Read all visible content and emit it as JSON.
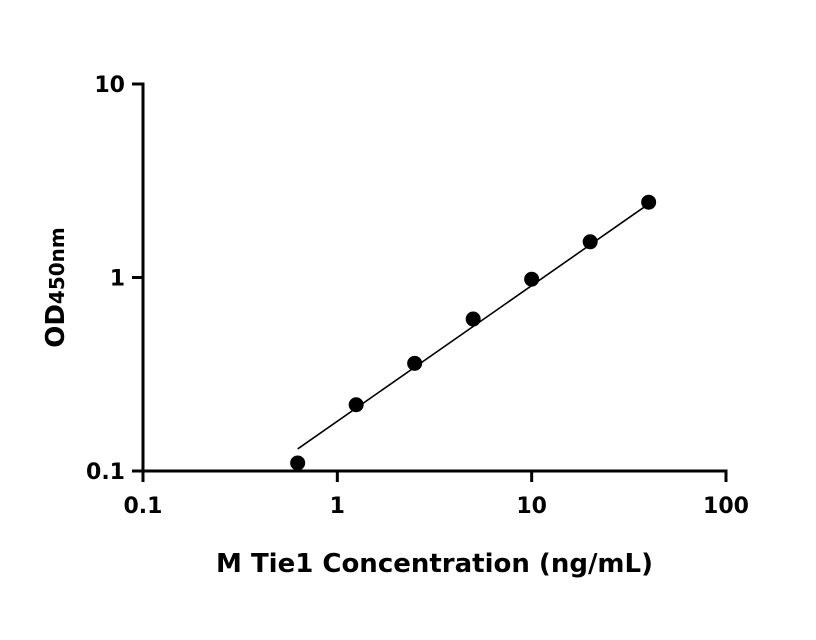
{
  "chart_data": {
    "type": "scatter",
    "xlabel": "M Tie1 Concentration (ng/mL)",
    "ylabel_main": "OD",
    "ylabel_sub": "450nm",
    "xscale": "log",
    "yscale": "log",
    "xlim": [
      0.1,
      100
    ],
    "ylim": [
      0.1,
      10
    ],
    "xticks": [
      0.1,
      1,
      10,
      100
    ],
    "xtick_labels": [
      "0.1",
      "1",
      "10",
      "100"
    ],
    "yticks": [
      0.1,
      1,
      10
    ],
    "ytick_labels": [
      "0.1",
      "1",
      "10"
    ],
    "grid": false,
    "legend": false,
    "series": [
      {
        "x": [
          0.625,
          1.25,
          2.5,
          5,
          10,
          20,
          40
        ],
        "y": [
          0.11,
          0.22,
          0.36,
          0.61,
          0.98,
          1.53,
          2.45
        ]
      }
    ],
    "fit_line": {
      "x": [
        0.625,
        40
      ],
      "y": [
        0.13,
        2.4
      ]
    },
    "colors": {
      "marker": "#000000",
      "line": "#000000"
    }
  }
}
